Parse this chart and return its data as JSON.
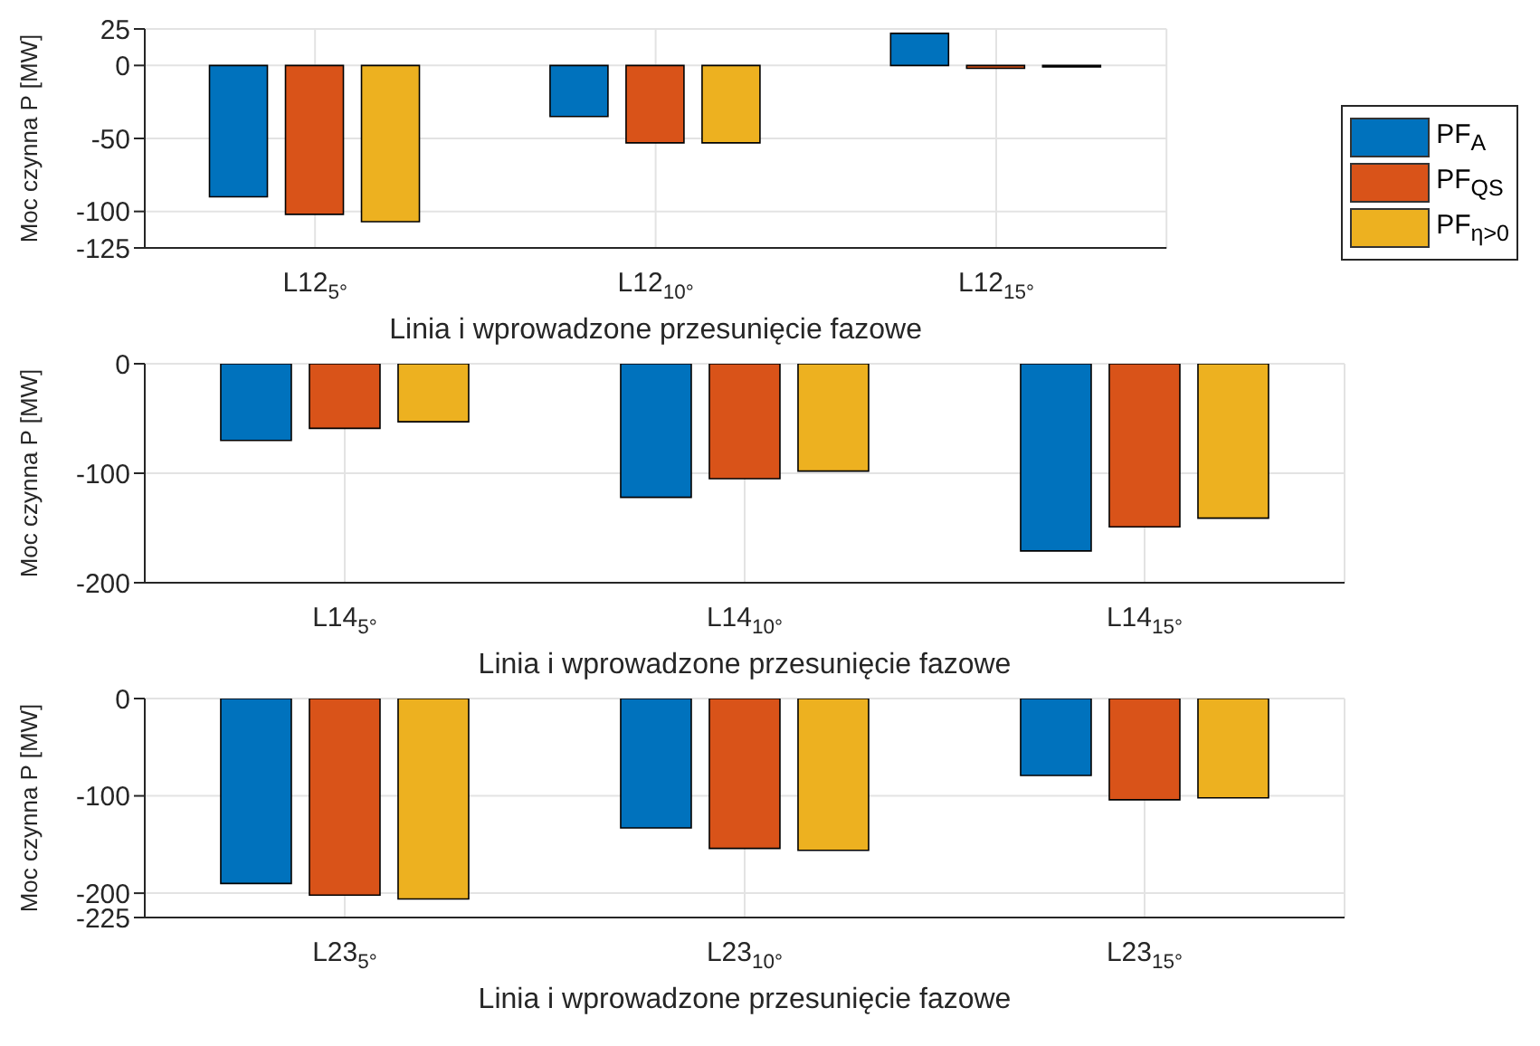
{
  "chart_data": [
    {
      "type": "bar",
      "categories": [
        "L12$_{5°}$",
        "L12$_{10°}$",
        "L12$_{15°}$"
      ],
      "series": [
        {
          "name": "PF$_{A}$",
          "color": "#0072bd",
          "values": [
            -90,
            -35,
            22
          ]
        },
        {
          "name": "PF$_{QS}$",
          "color": "#d95319",
          "values": [
            -102,
            -53,
            -2
          ]
        },
        {
          "name": "PF$_{η>0}$",
          "color": "#edb120",
          "values": [
            -107,
            -53,
            -1
          ]
        }
      ],
      "ylim": [
        -125,
        25
      ],
      "yticks": [
        -125,
        -100,
        -50,
        0,
        25
      ],
      "ylabel": "Moc czynna P [MW]",
      "xlabel": "Linia i wprowadzone przesunięcie fazowe",
      "grid": true,
      "legend": "right"
    },
    {
      "type": "bar",
      "categories": [
        "L14$_{5°}$",
        "L14$_{10°}$",
        "L14$_{15°}$"
      ],
      "series": [
        {
          "color": "#0072bd",
          "values": [
            -70,
            -122,
            -171
          ]
        },
        {
          "color": "#d95319",
          "values": [
            -59,
            -105,
            -149
          ]
        },
        {
          "color": "#edb120",
          "values": [
            -53,
            -98,
            -141
          ]
        }
      ],
      "ylim": [
        -200,
        0
      ],
      "yticks": [
        -200,
        -100,
        0
      ],
      "ylabel": "Moc czynna P [MW]",
      "xlabel": "Linia i wprowadzone przesunięcie fazowe",
      "grid": true
    },
    {
      "type": "bar",
      "categories": [
        "L23$_{5°}$",
        "L23$_{10°}$",
        "L23$_{15°}$"
      ],
      "series": [
        {
          "color": "#0072bd",
          "values": [
            -190,
            -133,
            -79
          ]
        },
        {
          "color": "#d95319",
          "values": [
            -202,
            -154,
            -104
          ]
        },
        {
          "color": "#edb120",
          "values": [
            -206,
            -156,
            -102
          ]
        }
      ],
      "ylim": [
        -225,
        0
      ],
      "yticks": [
        -225,
        -200,
        -100,
        0
      ],
      "ylabel": "Moc czynna P [MW]",
      "xlabel": "Linia i wprowadzone przesunięcie fazowe",
      "grid": true
    }
  ]
}
